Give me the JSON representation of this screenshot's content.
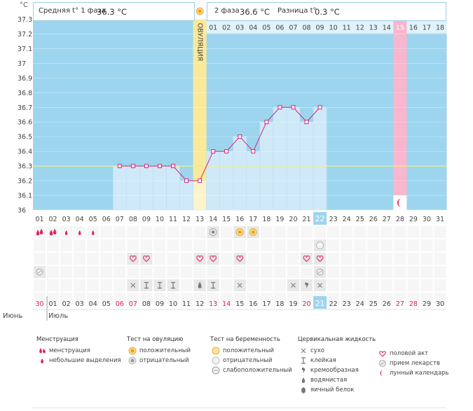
{
  "chart_data": {
    "type": "line",
    "unit_label": "°C",
    "y_ticks": [
      "37.3",
      "37.2",
      "37.1",
      "37",
      "36.9",
      "36.8",
      "36.7",
      "36.6",
      "36.5",
      "36.4",
      "36.3",
      "36.2",
      "36.1",
      "36"
    ],
    "ylim": [
      36.0,
      37.3
    ],
    "coverline": 36.3,
    "ovulation_label": "ОВУЛЯЦИЯ",
    "ovulation_day": 13,
    "today_day": 22,
    "lunar_day": 28,
    "cycle_days": [
      "01",
      "02",
      "03",
      "04",
      "05",
      "06",
      "07",
      "08",
      "09",
      "10",
      "11",
      "12",
      "13",
      "14",
      "15",
      "16",
      "17",
      "18",
      "19",
      "20",
      "21",
      "22",
      "23",
      "24",
      "25",
      "26",
      "27",
      "28",
      "29",
      "30",
      "31"
    ],
    "phase2_days": [
      "01",
      "02",
      "03",
      "04",
      "05",
      "06",
      "07",
      "08",
      "09",
      "10",
      "11",
      "12",
      "13",
      "14",
      "15",
      "16",
      "17",
      "18"
    ],
    "date_labels": [
      "30",
      "01",
      "02",
      "03",
      "04",
      "05",
      "06",
      "07",
      "08",
      "09",
      "10",
      "11",
      "12",
      "13",
      "14",
      "15",
      "16",
      "17",
      "18",
      "19",
      "20",
      "21",
      "22",
      "23",
      "24",
      "25",
      "26",
      "27",
      "28",
      "29",
      "30"
    ],
    "weekend_date_indices": [
      0,
      6,
      7,
      13,
      14,
      20,
      27,
      28
    ],
    "today_date_index": 21,
    "month_labels": [
      "Июнь",
      "Июль"
    ],
    "temperatures": [
      {
        "day": 7,
        "t": 36.3
      },
      {
        "day": 8,
        "t": 36.3
      },
      {
        "day": 9,
        "t": 36.3
      },
      {
        "day": 10,
        "t": 36.3
      },
      {
        "day": 11,
        "t": 36.3
      },
      {
        "day": 12,
        "t": 36.2
      },
      {
        "day": 13,
        "t": 36.2
      },
      {
        "day": 14,
        "t": 36.4
      },
      {
        "day": 15,
        "t": 36.4
      },
      {
        "day": 16,
        "t": 36.5
      },
      {
        "day": 17,
        "t": 36.4
      },
      {
        "day": 18,
        "t": 36.6
      },
      {
        "day": 19,
        "t": 36.7
      },
      {
        "day": 20,
        "t": 36.7
      },
      {
        "day": 21,
        "t": 36.6
      },
      {
        "day": 22,
        "t": 36.7
      }
    ],
    "markers": {
      "menstruation": [
        1,
        2,
        3,
        4,
        5
      ],
      "menstruation_heavy": [
        1,
        2
      ],
      "ovulation_test_negative": [
        14
      ],
      "ovulation_test_positive": [
        16,
        17
      ],
      "pregnancy_test": [
        22
      ],
      "intercourse": [
        8,
        9,
        13,
        14,
        16,
        21,
        22
      ],
      "medication": [
        1,
        22
      ],
      "fluid_dry": [
        8,
        11,
        16,
        20,
        22
      ],
      "fluid_sticky": [
        9,
        10,
        11,
        14
      ],
      "fluid_watery": [
        13
      ],
      "fluid_creamy": [
        21
      ]
    },
    "colors": {
      "plot_bg": "#9dd5ef",
      "bar_fill": "#cfe9f8",
      "line": "#d4247a",
      "coverline": "#f0f080",
      "ovulation": "#fae99a",
      "lunar": "#f9b6cf",
      "today": "#9dd5ef",
      "weekend_text": "#e0245e"
    }
  },
  "header": {
    "phase1_label": "Средняя t° 1 фаза",
    "phase1_value": "36.3 °C",
    "phase2_label": "2 фаза",
    "phase2_value": "36.6 °C",
    "diff_label": "Разница t°",
    "diff_value": "0.3 °C"
  },
  "legend": {
    "menstruation": {
      "title": "Менструация",
      "items": [
        "менструация",
        "небольшие выделения"
      ]
    },
    "ovulation_test": {
      "title": "Тест на овуляцию",
      "items": [
        "положительный",
        "отрицательный"
      ]
    },
    "pregnancy_test": {
      "title": "Тест на беременность",
      "items": [
        "положительный",
        "отрицательный",
        "слабоположительный"
      ]
    },
    "cervical_fluid": {
      "title": "Цервикальная жидкость",
      "items": [
        "сухо",
        "клейкая",
        "кремообразная",
        "водянистая",
        "яичный белок"
      ]
    },
    "other": {
      "items": [
        "половой акт",
        "прием лекарств",
        "лунный календарь"
      ]
    }
  }
}
